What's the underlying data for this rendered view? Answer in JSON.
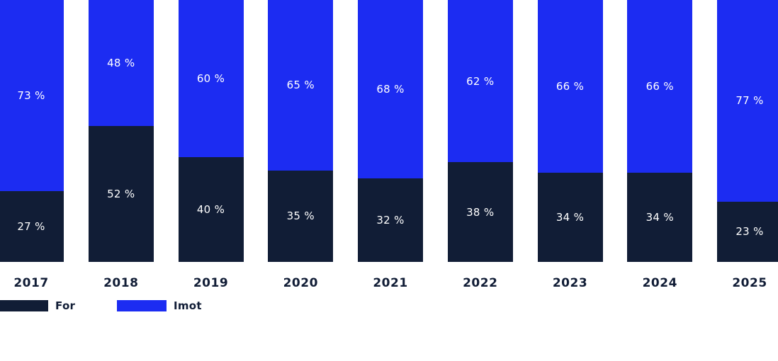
{
  "chart_data": {
    "type": "bar",
    "stacked": true,
    "orientation": "vertical",
    "categories": [
      "2017",
      "2018",
      "2019",
      "2020",
      "2021",
      "2022",
      "2023",
      "2024",
      "2025"
    ],
    "series": [
      {
        "name": "For",
        "color": "#111d36",
        "position": "bottom",
        "values": [
          27,
          52,
          40,
          35,
          32,
          38,
          34,
          34,
          23
        ]
      },
      {
        "name": "Imot",
        "color": "#1c2cf2",
        "position": "top",
        "values": [
          73,
          48,
          60,
          65,
          68,
          62,
          66,
          66,
          77
        ]
      }
    ],
    "value_suffix": " %",
    "ylim": [
      0,
      100
    ],
    "grid": false,
    "legend_position": "bottom-left",
    "label_color": "#ffffff",
    "axis_label_color": "#111d36"
  }
}
